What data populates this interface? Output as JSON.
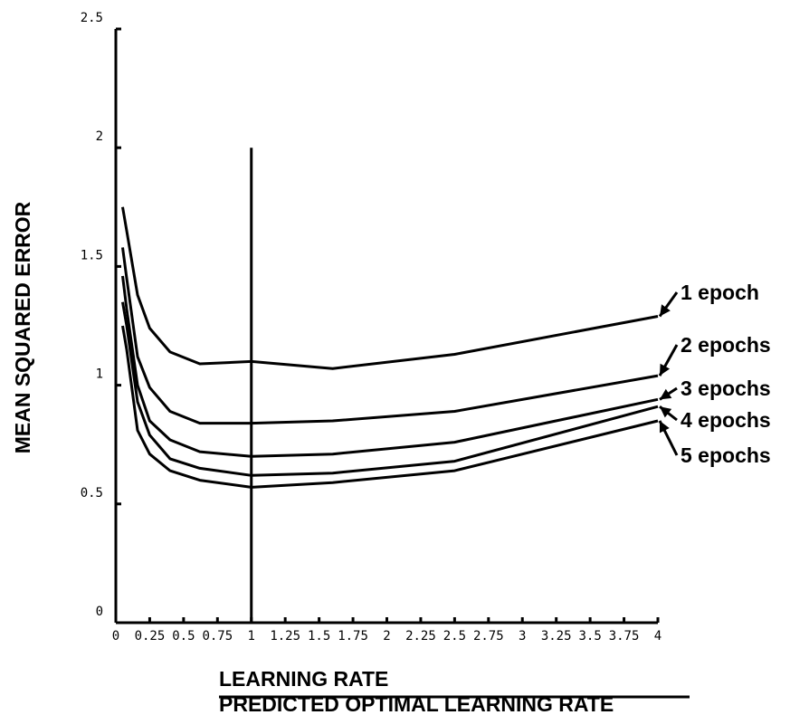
{
  "chart_data": {
    "type": "line",
    "xlabel": "LEARNING RATE",
    "xlabel_secondary": "PREDICTED OPTIMAL LEARNING RATE",
    "ylabel": "MEAN SQUARED ERROR",
    "xlim": [
      0,
      4
    ],
    "ylim": [
      0,
      2.5
    ],
    "x_ticks": [
      {
        "value": 0,
        "label": "0"
      },
      {
        "value": 0.25,
        "label": "0.25"
      },
      {
        "value": 0.5,
        "label": "0.5"
      },
      {
        "value": 0.75,
        "label": "0.75"
      },
      {
        "value": 1,
        "label": "1"
      },
      {
        "value": 1.25,
        "label": "1.25"
      },
      {
        "value": 1.5,
        "label": "1.5"
      },
      {
        "value": 1.75,
        "label": "1.75"
      },
      {
        "value": 2,
        "label": "2"
      },
      {
        "value": 2.25,
        "label": "2.25"
      },
      {
        "value": 2.5,
        "label": "2.5"
      },
      {
        "value": 2.75,
        "label": "2.75"
      },
      {
        "value": 3,
        "label": "3"
      },
      {
        "value": 3.25,
        "label": "3.25"
      },
      {
        "value": 3.5,
        "label": "3.5"
      },
      {
        "value": 3.75,
        "label": "3.75"
      },
      {
        "value": 4,
        "label": "4"
      }
    ],
    "y_ticks": [
      {
        "value": 0,
        "label": "0"
      },
      {
        "value": 0.5,
        "label": "0.5"
      },
      {
        "value": 1,
        "label": "1"
      },
      {
        "value": 1.5,
        "label": "1.5"
      },
      {
        "value": 2,
        "label": "2"
      },
      {
        "value": 2.5,
        "label": "2.5"
      }
    ],
    "reference_line": {
      "x": 1,
      "y_range": [
        0,
        2
      ]
    },
    "x": [
      0.05,
      0.08,
      0.16,
      0.25,
      0.4,
      0.62,
      1,
      1.6,
      2.5,
      4
    ],
    "series": [
      {
        "name": "1 epoch",
        "values": [
          1.75,
          1.65,
          1.38,
          1.24,
          1.14,
          1.09,
          1.1,
          1.07,
          1.13,
          1.29
        ]
      },
      {
        "name": "2 epochs",
        "values": [
          1.58,
          1.45,
          1.12,
          0.99,
          0.89,
          0.84,
          0.84,
          0.85,
          0.89,
          1.04
        ]
      },
      {
        "name": "3 epochs",
        "values": [
          1.46,
          1.32,
          1.0,
          0.85,
          0.77,
          0.72,
          0.7,
          0.71,
          0.76,
          0.94
        ]
      },
      {
        "name": "4 epochs",
        "values": [
          1.35,
          1.25,
          0.93,
          0.79,
          0.69,
          0.65,
          0.62,
          0.63,
          0.68,
          0.91
        ]
      },
      {
        "name": "5 epochs",
        "values": [
          1.25,
          1.15,
          0.81,
          0.71,
          0.64,
          0.6,
          0.57,
          0.59,
          0.64,
          0.85
        ]
      }
    ],
    "legend_placement": "right"
  }
}
